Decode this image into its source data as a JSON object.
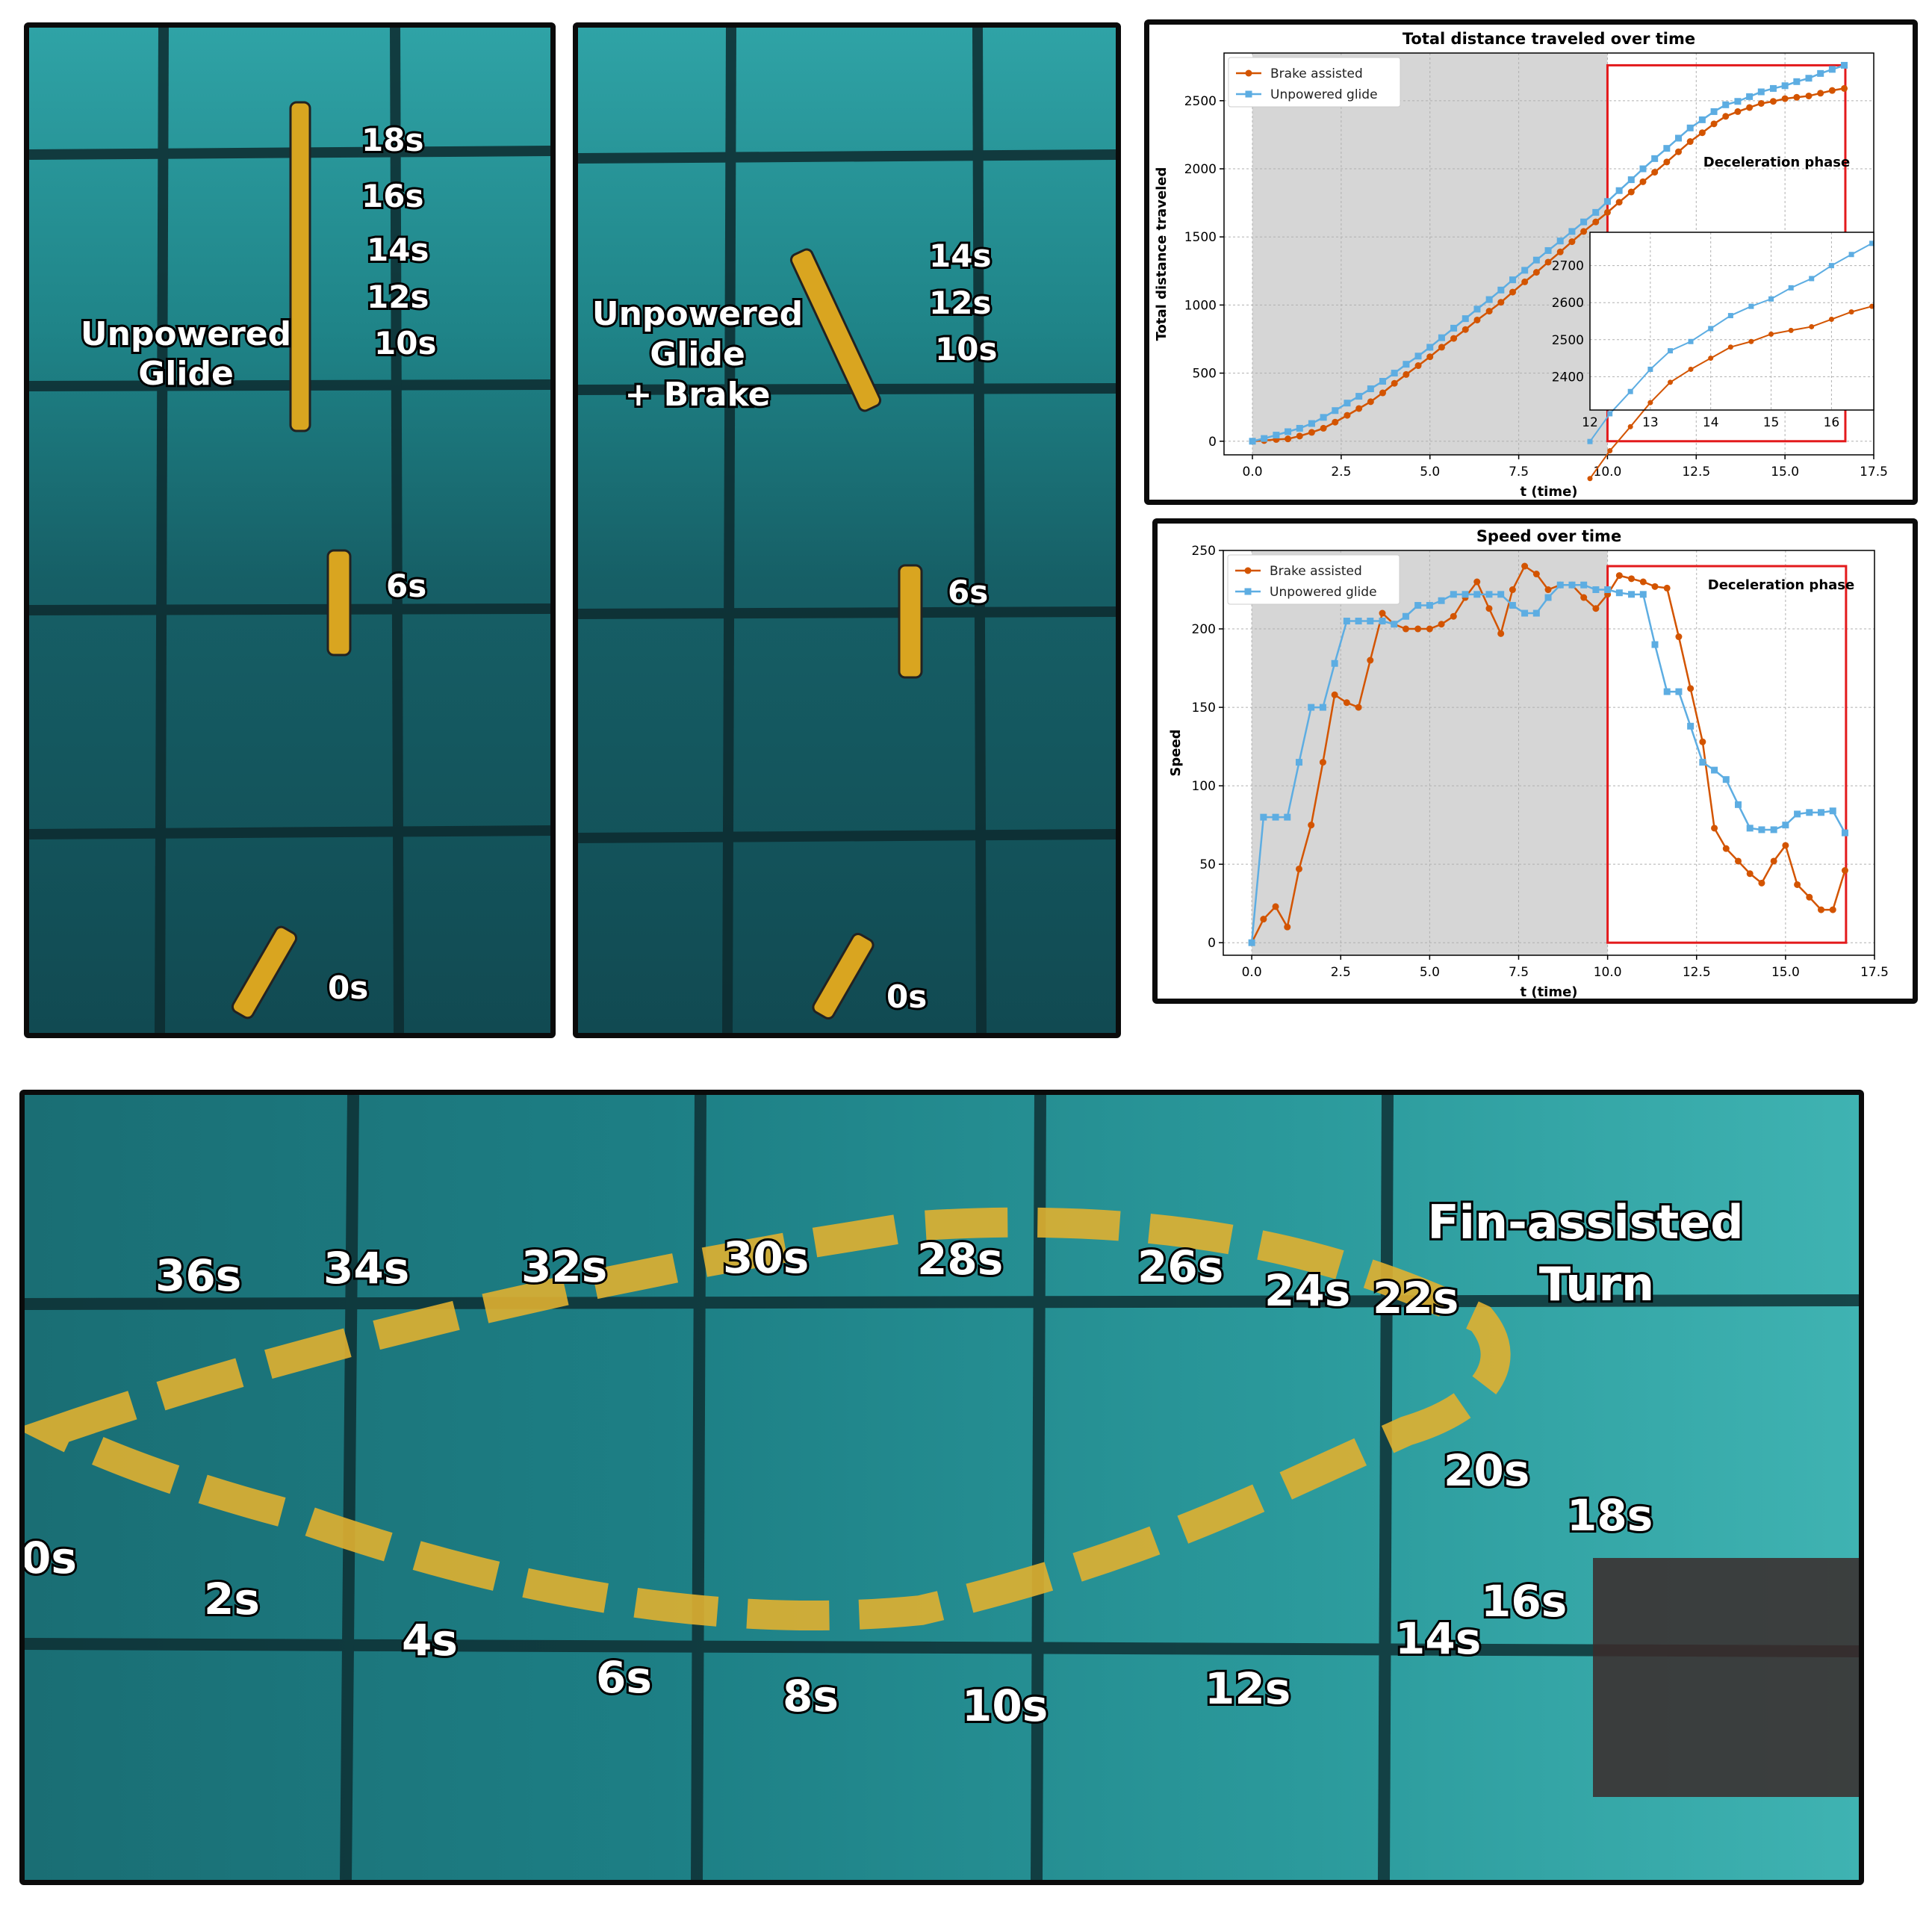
{
  "photo_left": {
    "caption_line1": "Unpowered",
    "caption_line2": "Glide",
    "time_labels": [
      "18s",
      "16s",
      "14s",
      "12s",
      "10s",
      "6s",
      "0s"
    ]
  },
  "photo_middle": {
    "caption_line1": "Unpowered",
    "caption_line2": "Glide",
    "caption_line3": "+ Brake",
    "time_labels": [
      "14s",
      "12s",
      "10s",
      "6s",
      "0s"
    ]
  },
  "photo_bottom": {
    "caption_line1": "Fin-assisted",
    "caption_line2": "Turn",
    "time_labels": [
      "36s",
      "34s",
      "32s",
      "30s",
      "28s",
      "26s",
      "24s",
      "22s",
      "20s",
      "18s",
      "16s",
      "14s",
      "12s",
      "10s",
      "8s",
      "6s",
      "4s",
      "2s",
      "0s"
    ]
  },
  "colors": {
    "brake": "#d35400",
    "glide": "#5dade2",
    "highlight": "#e31a1c",
    "shade": "#d6d6d6"
  },
  "chart_data": [
    {
      "type": "line",
      "title": "Total distance traveled over time",
      "xlabel": "t (time)",
      "ylabel": "Total distance traveled",
      "xlim": [
        -0.8,
        17.5
      ],
      "ylim": [
        -100,
        2850
      ],
      "xticks": [
        "0.0",
        "2.5",
        "5.0",
        "7.5",
        "10.0",
        "12.5",
        "15.0",
        "17.5"
      ],
      "yticks": [
        "0",
        "500",
        "1000",
        "1500",
        "2000",
        "2500"
      ],
      "legend_position": "top-left",
      "grid": true,
      "shaded_region": [
        0,
        10
      ],
      "highlight_box": {
        "x": [
          10,
          16.7
        ],
        "y": [
          0,
          2760
        ],
        "label": "Deceleration phase"
      },
      "series": [
        {
          "name": "Brake assisted",
          "color_key": "brake",
          "marker": "circle",
          "x": [
            0,
            0.33,
            0.67,
            1,
            1.33,
            1.67,
            2,
            2.33,
            2.67,
            3,
            3.33,
            3.67,
            4,
            4.33,
            4.67,
            5,
            5.33,
            5.67,
            6,
            6.33,
            6.67,
            7,
            7.33,
            7.67,
            8,
            8.33,
            8.67,
            9,
            9.33,
            9.67,
            10,
            10.33,
            10.67,
            11,
            11.33,
            11.67,
            12,
            12.33,
            12.67,
            13,
            13.33,
            13.67,
            14,
            14.33,
            14.67,
            15,
            15.33,
            15.67,
            16,
            16.33,
            16.67
          ],
          "y": [
            0,
            5,
            13,
            17,
            38,
            65,
            95,
            140,
            190,
            240,
            290,
            355,
            425,
            490,
            555,
            620,
            690,
            755,
            820,
            890,
            955,
            1020,
            1095,
            1170,
            1240,
            1315,
            1390,
            1465,
            1540,
            1610,
            1680,
            1755,
            1830,
            1905,
            1975,
            2050,
            2125,
            2200,
            2265,
            2330,
            2385,
            2420,
            2450,
            2480,
            2495,
            2515,
            2525,
            2535,
            2555,
            2575,
            2590
          ]
        },
        {
          "name": "Unpowered glide",
          "color_key": "glide",
          "marker": "square",
          "x": [
            0,
            0.33,
            0.67,
            1,
            1.33,
            1.67,
            2,
            2.33,
            2.67,
            3,
            3.33,
            3.67,
            4,
            4.33,
            4.67,
            5,
            5.33,
            5.67,
            6,
            6.33,
            6.67,
            7,
            7.33,
            7.67,
            8,
            8.33,
            8.67,
            9,
            9.33,
            9.67,
            10,
            10.33,
            10.67,
            11,
            11.33,
            11.67,
            12,
            12.33,
            12.67,
            13,
            13.33,
            13.67,
            14,
            14.33,
            14.67,
            15,
            15.33,
            15.67,
            16,
            16.33,
            16.67
          ],
          "y": [
            0,
            20,
            45,
            70,
            95,
            130,
            175,
            225,
            280,
            330,
            385,
            440,
            500,
            565,
            625,
            690,
            760,
            830,
            900,
            970,
            1040,
            1110,
            1185,
            1255,
            1330,
            1400,
            1470,
            1540,
            1610,
            1680,
            1760,
            1840,
            1920,
            2000,
            2075,
            2150,
            2225,
            2300,
            2360,
            2420,
            2470,
            2495,
            2530,
            2565,
            2590,
            2610,
            2640,
            2665,
            2700,
            2730,
            2760
          ]
        }
      ],
      "inset": {
        "xlim": [
          12,
          16.7
        ],
        "ylim": [
          2310,
          2790
        ],
        "xticks": [
          "12",
          "13",
          "14",
          "15",
          "16"
        ],
        "yticks": [
          "2400",
          "2500",
          "2600",
          "2700"
        ]
      }
    },
    {
      "type": "line",
      "title": "Speed over time",
      "xlabel": "t (time)",
      "ylabel": "Speed",
      "xlim": [
        -0.8,
        17.5
      ],
      "ylim": [
        -8,
        250
      ],
      "xticks": [
        "0.0",
        "2.5",
        "5.0",
        "7.5",
        "10.0",
        "12.5",
        "15.0",
        "17.5"
      ],
      "yticks": [
        "0",
        "50",
        "100",
        "150",
        "200",
        "250"
      ],
      "legend_position": "top-left",
      "grid": true,
      "shaded_region": [
        0,
        10
      ],
      "highlight_box": {
        "x": [
          10,
          16.7
        ],
        "y": [
          0,
          240
        ],
        "label": "Deceleration phase"
      },
      "series": [
        {
          "name": "Brake assisted",
          "color_key": "brake",
          "marker": "circle",
          "x": [
            0,
            0.33,
            0.67,
            1,
            1.33,
            1.67,
            2,
            2.33,
            2.67,
            3,
            3.33,
            3.67,
            4,
            4.33,
            4.67,
            5,
            5.33,
            5.67,
            6,
            6.33,
            6.67,
            7,
            7.33,
            7.67,
            8,
            8.33,
            8.67,
            9,
            9.33,
            9.67,
            10,
            10.33,
            10.67,
            11,
            11.33,
            11.67,
            12,
            12.33,
            12.67,
            13,
            13.33,
            13.67,
            14,
            14.33,
            14.67,
            15,
            15.33,
            15.67,
            16,
            16.33,
            16.67
          ],
          "y": [
            0,
            15,
            23,
            10,
            47,
            75,
            115,
            158,
            153,
            150,
            180,
            210,
            203,
            200,
            200,
            200,
            203,
            208,
            220,
            230,
            213,
            197,
            225,
            240,
            235,
            225,
            228,
            228,
            220,
            213,
            222,
            234,
            232,
            230,
            227,
            226,
            195,
            162,
            128,
            73,
            60,
            52,
            44,
            38,
            52,
            62,
            37,
            29,
            21,
            21,
            46
          ]
        },
        {
          "name": "Unpowered glide",
          "color_key": "glide",
          "marker": "square",
          "x": [
            0,
            0.33,
            0.67,
            1,
            1.33,
            1.67,
            2,
            2.33,
            2.67,
            3,
            3.33,
            3.67,
            4,
            4.33,
            4.67,
            5,
            5.33,
            5.67,
            6,
            6.33,
            6.67,
            7,
            7.33,
            7.67,
            8,
            8.33,
            8.67,
            9,
            9.33,
            9.67,
            10,
            10.33,
            10.67,
            11,
            11.33,
            11.67,
            12,
            12.33,
            12.67,
            13,
            13.33,
            13.67,
            14,
            14.33,
            14.67,
            15,
            15.33,
            15.67,
            16,
            16.33,
            16.67
          ],
          "y": [
            0,
            80,
            80,
            80,
            115,
            150,
            150,
            178,
            205,
            205,
            205,
            205,
            203,
            208,
            215,
            215,
            218,
            222,
            222,
            222,
            222,
            222,
            215,
            210,
            210,
            220,
            228,
            228,
            228,
            225,
            225,
            223,
            222,
            222,
            190,
            160,
            160,
            138,
            115,
            110,
            104,
            88,
            73,
            72,
            72,
            75,
            82,
            83,
            83,
            84,
            70
          ]
        }
      ]
    }
  ]
}
